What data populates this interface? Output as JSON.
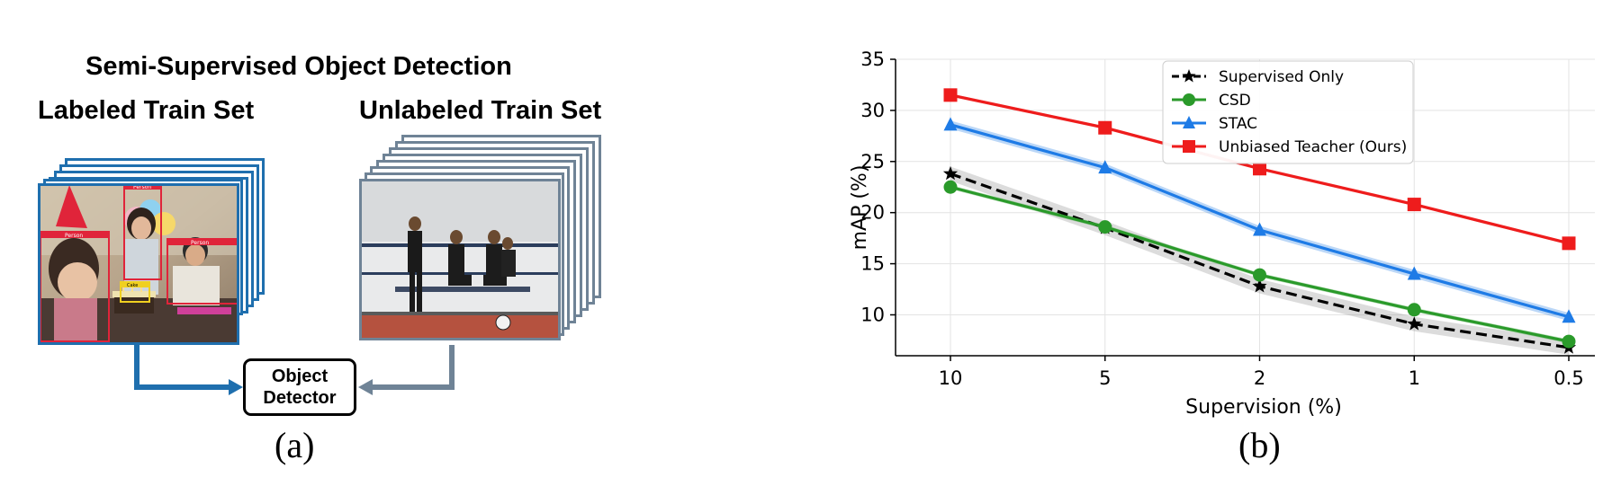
{
  "panel_a": {
    "title": "Semi-Supervised Object Detection",
    "labeled_heading": "Labeled Train Set",
    "unlabeled_heading": "Unlabeled Train Set",
    "detector_line1": "Object",
    "detector_line2": "Detector",
    "box_labels": [
      "Person",
      "Person",
      "Person",
      "Cake"
    ],
    "caption": "(a)",
    "colors": {
      "labeled_stack": "#1f6fae",
      "unlabeled_stack": "#6f8396",
      "bbox": "#e0243a"
    }
  },
  "panel_b": {
    "caption": "(b)"
  },
  "chart_data": {
    "type": "line",
    "xlabel": "Supervision (%)",
    "ylabel": "mAP (%)",
    "categories": [
      "10",
      "5",
      "2",
      "1",
      "0.5"
    ],
    "ylim": [
      6.0,
      35
    ],
    "yticks": [
      10,
      15,
      20,
      25,
      30,
      35
    ],
    "grid": true,
    "legend_position": "top-right",
    "series": [
      {
        "name": "Supervised Only",
        "values": [
          23.8,
          18.5,
          12.8,
          9.1,
          6.8
        ],
        "color": "#000000",
        "marker": "star",
        "dashed": true,
        "band": 0.7
      },
      {
        "name": "CSD",
        "values": [
          22.5,
          18.6,
          13.9,
          10.5,
          7.4
        ],
        "color": "#2a9a2a",
        "marker": "circle",
        "dashed": false,
        "band": 0.2
      },
      {
        "name": "STAC",
        "values": [
          28.6,
          24.4,
          18.3,
          14.0,
          9.8
        ],
        "color": "#1e7be6",
        "marker": "triangle",
        "dashed": false,
        "band": 0.4
      },
      {
        "name": "Unbiased Teacher (Ours)",
        "values": [
          31.5,
          28.3,
          24.3,
          20.8,
          17.0
        ],
        "color": "#ee1c1c",
        "marker": "square",
        "dashed": false,
        "band": 0.15
      }
    ]
  }
}
